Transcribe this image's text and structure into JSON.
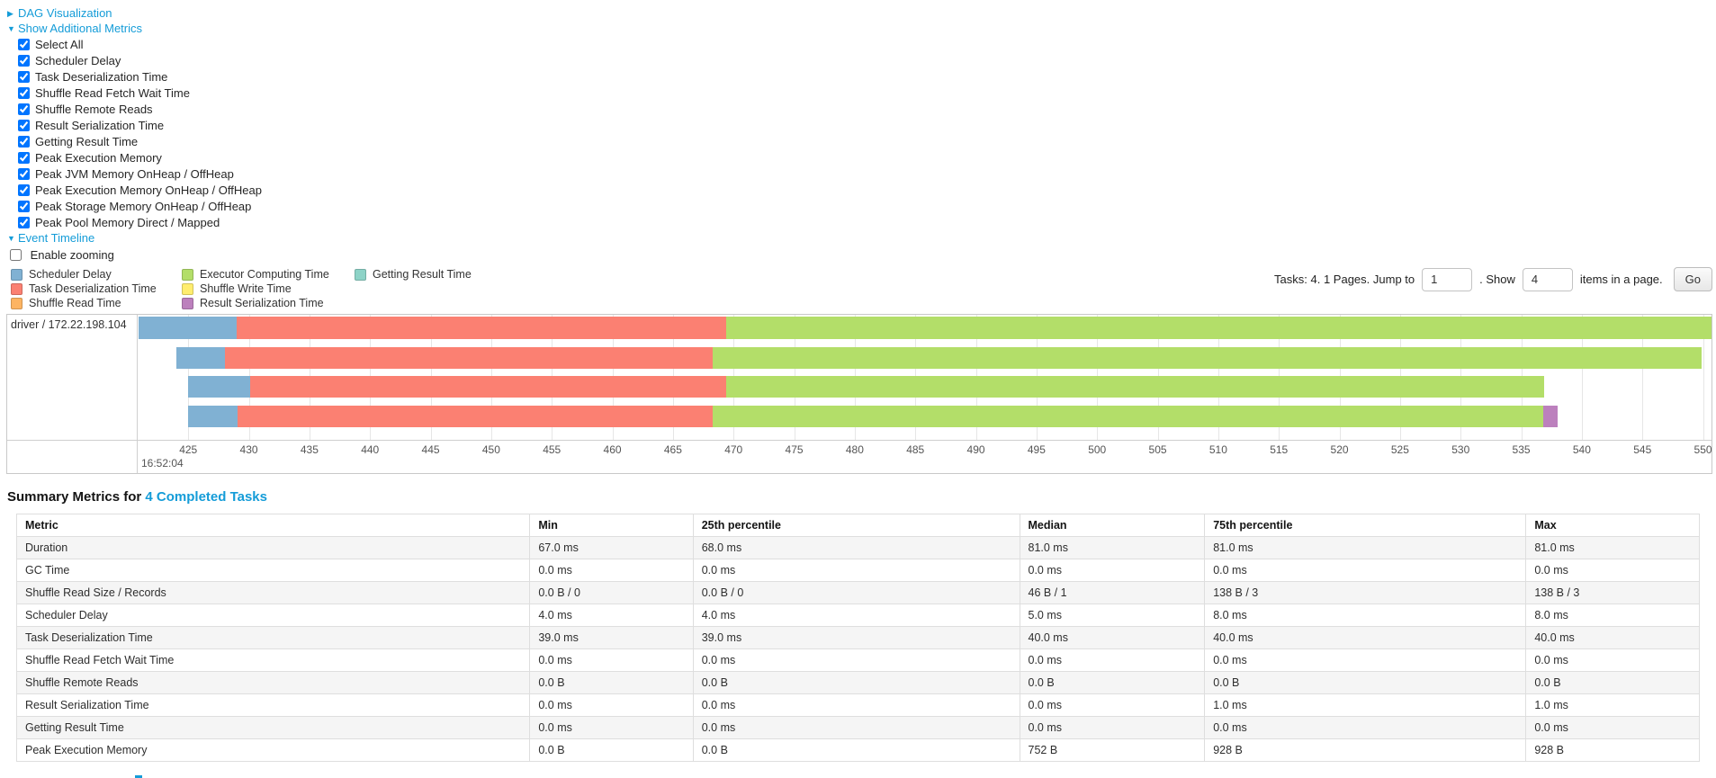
{
  "links": {
    "dag": "DAG Visualization",
    "additional_metrics": "Show Additional Metrics",
    "event_timeline": "Event Timeline"
  },
  "metrics_panel": {
    "items": [
      "Select All",
      "Scheduler Delay",
      "Task Deserialization Time",
      "Shuffle Read Fetch Wait Time",
      "Shuffle Remote Reads",
      "Result Serialization Time",
      "Getting Result Time",
      "Peak Execution Memory",
      "Peak JVM Memory OnHeap / OffHeap",
      "Peak Execution Memory OnHeap / OffHeap",
      "Peak Storage Memory OnHeap / OffHeap",
      "Peak Pool Memory Direct / Mapped"
    ],
    "all_checked": true
  },
  "enable_zooming": {
    "label": "Enable zooming",
    "checked": false
  },
  "colors": {
    "scheduler_delay": "#80B1D3",
    "task_deserialization": "#FB8072",
    "shuffle_read": "#FDB462",
    "executor_computing": "#B3DE69",
    "shuffle_write": "#FFED6F",
    "result_serialization": "#BC80BD",
    "getting_result": "#8DD3C7"
  },
  "legend": {
    "items": [
      {
        "key": "scheduler_delay",
        "label": "Scheduler Delay"
      },
      {
        "key": "task_deserialization",
        "label": "Task Deserialization Time"
      },
      {
        "key": "shuffle_read",
        "label": "Shuffle Read Time"
      },
      {
        "key": "executor_computing",
        "label": "Executor Computing Time"
      },
      {
        "key": "shuffle_write",
        "label": "Shuffle Write Time"
      },
      {
        "key": "result_serialization",
        "label": "Result Serialization Time"
      },
      {
        "key": "getting_result",
        "label": "Getting Result Time"
      }
    ]
  },
  "pagination": {
    "tasks_info": "Tasks: 4. 1 Pages. Jump to",
    "jump_value": "1",
    "show_label": ". Show",
    "page_size_value": "4",
    "items_label": "items in a page.",
    "go_label": "Go"
  },
  "timeline": {
    "row_label": "driver / 172.22.198.104",
    "axis": {
      "min": 420.9,
      "max": 550.7,
      "tick_start": 425,
      "tick_step": 5,
      "tick_end": 550,
      "major_label": "16:52:04"
    },
    "tasks": [
      {
        "segments": [
          {
            "key": "scheduler_delay",
            "start": 420.9,
            "end": 429.0
          },
          {
            "key": "task_deserialization",
            "start": 429.0,
            "end": 469.4
          },
          {
            "key": "executor_computing",
            "start": 469.4,
            "end": 550.7
          }
        ]
      },
      {
        "segments": [
          {
            "key": "scheduler_delay",
            "start": 424.0,
            "end": 428.0
          },
          {
            "key": "task_deserialization",
            "start": 428.0,
            "end": 468.3
          },
          {
            "key": "executor_computing",
            "start": 468.3,
            "end": 549.9
          }
        ]
      },
      {
        "segments": [
          {
            "key": "scheduler_delay",
            "start": 425.0,
            "end": 430.1
          },
          {
            "key": "task_deserialization",
            "start": 430.1,
            "end": 469.4
          },
          {
            "key": "executor_computing",
            "start": 469.4,
            "end": 536.9
          }
        ]
      },
      {
        "segments": [
          {
            "key": "scheduler_delay",
            "start": 425.0,
            "end": 429.1
          },
          {
            "key": "task_deserialization",
            "start": 429.1,
            "end": 468.3
          },
          {
            "key": "executor_computing",
            "start": 468.3,
            "end": 536.8
          },
          {
            "key": "result_serialization",
            "start": 536.8,
            "end": 538.0
          }
        ]
      }
    ]
  },
  "summary": {
    "heading": "Summary Metrics for ",
    "heading_link": "4 Completed Tasks"
  },
  "summary_table": {
    "columns": [
      "Metric",
      "Min",
      "25th percentile",
      "Median",
      "75th percentile",
      "Max"
    ],
    "rows": [
      [
        "Duration",
        "67.0 ms",
        "68.0 ms",
        "81.0 ms",
        "81.0 ms",
        "81.0 ms"
      ],
      [
        "GC Time",
        "0.0 ms",
        "0.0 ms",
        "0.0 ms",
        "0.0 ms",
        "0.0 ms"
      ],
      [
        "Shuffle Read Size / Records",
        "0.0 B / 0",
        "0.0 B / 0",
        "46 B / 1",
        "138 B / 3",
        "138 B / 3"
      ],
      [
        "Scheduler Delay",
        "4.0 ms",
        "4.0 ms",
        "5.0 ms",
        "8.0 ms",
        "8.0 ms"
      ],
      [
        "Task Deserialization Time",
        "39.0 ms",
        "39.0 ms",
        "40.0 ms",
        "40.0 ms",
        "40.0 ms"
      ],
      [
        "Shuffle Read Fetch Wait Time",
        "0.0 ms",
        "0.0 ms",
        "0.0 ms",
        "0.0 ms",
        "0.0 ms"
      ],
      [
        "Shuffle Remote Reads",
        "0.0 B",
        "0.0 B",
        "0.0 B",
        "0.0 B",
        "0.0 B"
      ],
      [
        "Result Serialization Time",
        "0.0 ms",
        "0.0 ms",
        "0.0 ms",
        "1.0 ms",
        "1.0 ms"
      ],
      [
        "Getting Result Time",
        "0.0 ms",
        "0.0 ms",
        "0.0 ms",
        "0.0 ms",
        "0.0 ms"
      ],
      [
        "Peak Execution Memory",
        "0.0 B",
        "0.0 B",
        "752 B",
        "928 B",
        "928 B"
      ]
    ]
  }
}
